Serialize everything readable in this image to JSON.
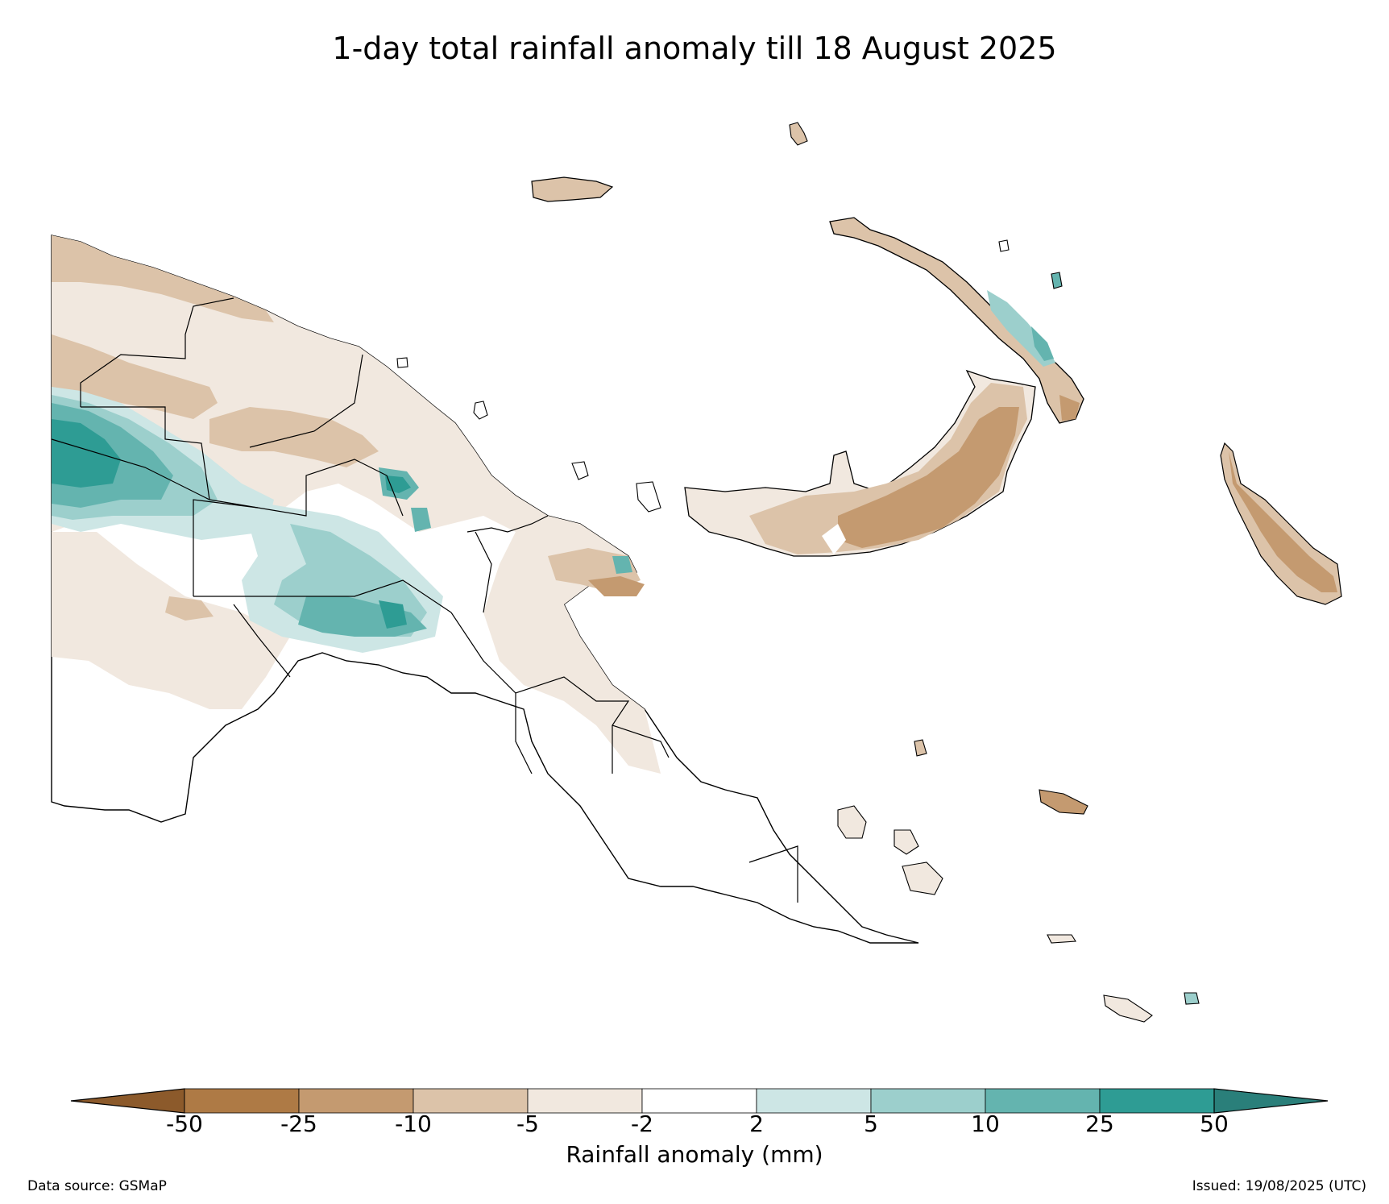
{
  "title": "1-day total rainfall anomaly till 18 August 2025",
  "colorbar": {
    "label": "Rainfall anomaly (mm)",
    "ticks": [
      "-50",
      "-25",
      "-10",
      "-5",
      "-2",
      "2",
      "5",
      "10",
      "25",
      "50"
    ],
    "under_color": "#8c5a2b",
    "over_color": "#2a7f7a",
    "bins": [
      {
        "range": "-50 to -25",
        "color": "#ae7a45"
      },
      {
        "range": "-25 to -10",
        "color": "#c49a70"
      },
      {
        "range": "-10 to -5",
        "color": "#dcc3a9"
      },
      {
        "range": "-5 to -2",
        "color": "#f1e8df"
      },
      {
        "range": "-2 to 2",
        "color": "#ffffff"
      },
      {
        "range": "2 to 5",
        "color": "#cde6e5"
      },
      {
        "range": "5 to 10",
        "color": "#9ccfcc"
      },
      {
        "range": "10 to 25",
        "color": "#64b4af"
      },
      {
        "range": "25 to 50",
        "color": "#2e9c94"
      }
    ]
  },
  "footer": {
    "source": "Data source: GSMaP",
    "issued": "Issued: 19/08/2025 (UTC)"
  }
}
